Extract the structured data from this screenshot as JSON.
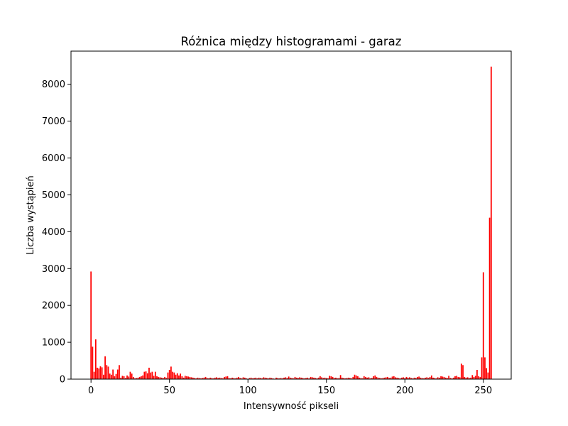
{
  "chart_data": {
    "type": "bar",
    "title": "Różnica między histogramami - garaz",
    "xlabel": "Intensywność pikseli",
    "ylabel": "Liczba wystąpień",
    "xlim": [
      -12.75,
      267.75
    ],
    "ylim": [
      0,
      8900
    ],
    "xticks": [
      0,
      50,
      100,
      150,
      200,
      250
    ],
    "yticks": [
      0,
      1000,
      2000,
      3000,
      4000,
      5000,
      6000,
      7000,
      8000
    ],
    "grid": false,
    "legend": "none",
    "bar_color": "#ff0000",
    "x": [
      0,
      1,
      2,
      3,
      4,
      5,
      6,
      7,
      8,
      9,
      10,
      11,
      12,
      13,
      14,
      15,
      16,
      17,
      18,
      19,
      20,
      21,
      22,
      23,
      24,
      25,
      26,
      27,
      28,
      29,
      30,
      31,
      32,
      33,
      34,
      35,
      36,
      37,
      38,
      39,
      40,
      41,
      42,
      43,
      44,
      45,
      46,
      47,
      48,
      49,
      50,
      51,
      52,
      53,
      54,
      55,
      56,
      57,
      58,
      59,
      60,
      61,
      62,
      63,
      64,
      65,
      66,
      67,
      68,
      69,
      70,
      71,
      72,
      73,
      74,
      75,
      76,
      77,
      78,
      79,
      80,
      81,
      82,
      83,
      84,
      85,
      86,
      87,
      88,
      89,
      90,
      91,
      92,
      93,
      94,
      95,
      96,
      97,
      98,
      99,
      100,
      101,
      102,
      103,
      104,
      105,
      106,
      107,
      108,
      109,
      110,
      111,
      112,
      113,
      114,
      115,
      116,
      117,
      118,
      119,
      120,
      121,
      122,
      123,
      124,
      125,
      126,
      127,
      128,
      129,
      130,
      131,
      132,
      133,
      134,
      135,
      136,
      137,
      138,
      139,
      140,
      141,
      142,
      143,
      144,
      145,
      146,
      147,
      148,
      149,
      150,
      151,
      152,
      153,
      154,
      155,
      156,
      157,
      158,
      159,
      160,
      161,
      162,
      163,
      164,
      165,
      166,
      167,
      168,
      169,
      170,
      171,
      172,
      173,
      174,
      175,
      176,
      177,
      178,
      179,
      180,
      181,
      182,
      183,
      184,
      185,
      186,
      187,
      188,
      189,
      190,
      191,
      192,
      193,
      194,
      195,
      196,
      197,
      198,
      199,
      200,
      201,
      202,
      203,
      204,
      205,
      206,
      207,
      208,
      209,
      210,
      211,
      212,
      213,
      214,
      215,
      216,
      217,
      218,
      219,
      220,
      221,
      222,
      223,
      224,
      225,
      226,
      227,
      228,
      229,
      230,
      231,
      232,
      233,
      234,
      235,
      236,
      237,
      238,
      239,
      240,
      241,
      242,
      243,
      244,
      245,
      246,
      247,
      248,
      249,
      250,
      251,
      252,
      253,
      254,
      255
    ],
    "values": [
      2920,
      880,
      200,
      1080,
      310,
      290,
      350,
      320,
      120,
      620,
      380,
      340,
      150,
      120,
      260,
      80,
      140,
      260,
      380,
      40,
      90,
      80,
      30,
      100,
      70,
      200,
      150,
      60,
      20,
      30,
      40,
      60,
      80,
      100,
      200,
      210,
      160,
      310,
      180,
      200,
      90,
      200,
      80,
      60,
      50,
      40,
      30,
      60,
      30,
      180,
      250,
      340,
      200,
      180,
      120,
      160,
      100,
      150,
      80,
      40,
      90,
      80,
      70,
      60,
      50,
      40,
      30,
      20,
      40,
      30,
      20,
      30,
      40,
      60,
      30,
      20,
      40,
      30,
      20,
      40,
      50,
      30,
      40,
      30,
      20,
      60,
      70,
      80,
      30,
      20,
      40,
      30,
      20,
      40,
      60,
      30,
      20,
      50,
      40,
      20,
      10,
      30,
      40,
      20,
      30,
      40,
      20,
      40,
      30,
      20,
      50,
      40,
      30,
      20,
      40,
      30,
      20,
      10,
      40,
      30,
      20,
      30,
      20,
      40,
      50,
      30,
      70,
      40,
      30,
      20,
      60,
      40,
      30,
      50,
      40,
      30,
      20,
      30,
      40,
      20,
      60,
      50,
      40,
      30,
      20,
      40,
      80,
      50,
      30,
      40,
      30,
      20,
      90,
      80,
      60,
      30,
      40,
      20,
      30,
      110,
      40,
      30,
      20,
      30,
      40,
      30,
      20,
      60,
      120,
      100,
      80,
      40,
      30,
      20,
      80,
      60,
      40,
      50,
      20,
      30,
      80,
      100,
      60,
      40,
      30,
      20,
      30,
      40,
      50,
      60,
      30,
      40,
      70,
      80,
      50,
      40,
      30,
      20,
      40,
      50,
      30,
      60,
      40,
      50,
      30,
      20,
      40,
      30,
      60,
      70,
      40,
      30,
      20,
      40,
      50,
      30,
      60,
      100,
      40,
      30,
      20,
      50,
      40,
      80,
      70,
      60,
      40,
      30,
      90,
      30,
      20,
      40,
      80,
      90,
      60,
      50,
      420,
      380,
      60,
      40,
      50,
      30,
      40,
      110,
      60,
      90,
      250,
      80,
      60,
      590,
      2900,
      590,
      300,
      180,
      4380,
      8480
    ]
  }
}
